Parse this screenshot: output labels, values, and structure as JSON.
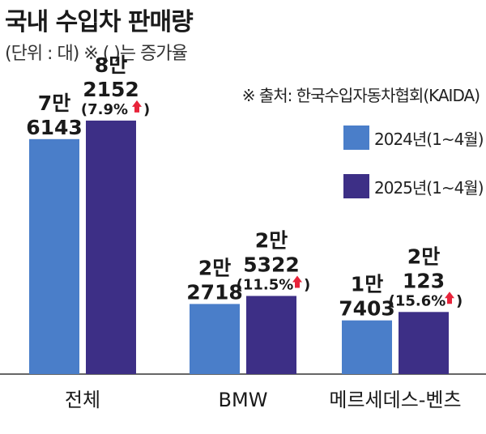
{
  "title": "국내 수입차 판매량",
  "subtitle": "(단위 : 대) ※ ( )는 증가율",
  "source": "※ 출처: 한국수입자동차협회(KAIDA)",
  "colors": {
    "series_2024": "#4a7ec9",
    "series_2025": "#3d2f86",
    "up_arrow": "#e8233a"
  },
  "chart_data": {
    "type": "bar",
    "categories": [
      "전체",
      "BMW",
      "메르세데스-벤츠"
    ],
    "series": [
      {
        "name": "2024년(1~4월)",
        "values": [
          76143,
          22718,
          17403
        ],
        "labels": [
          [
            "7만",
            "6143"
          ],
          [
            "2만",
            "2718"
          ],
          [
            "1만",
            "7403"
          ]
        ]
      },
      {
        "name": "2025년(1~4월)",
        "values": [
          82152,
          25322,
          20123
        ],
        "labels": [
          [
            "8만",
            "2152"
          ],
          [
            "2만",
            "5322"
          ],
          [
            "2만",
            "123"
          ]
        ],
        "growth": [
          "(7.9%",
          "(11.5%",
          "(15.6%"
        ]
      }
    ],
    "ylim": [
      0,
      90000
    ],
    "legend": "right",
    "grid": false
  }
}
